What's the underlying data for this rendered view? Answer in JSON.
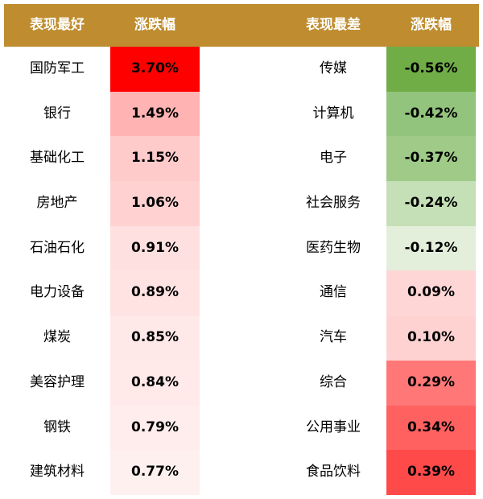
{
  "chart_data": {
    "type": "table",
    "headers": {
      "best_name": "表现最好",
      "best_change": "涨跌幅",
      "worst_name": "表现最差",
      "worst_change": "涨跌幅"
    },
    "best": [
      {
        "name": "国防军工",
        "change": "3.70%",
        "value": 3.7,
        "color": "#ff0000"
      },
      {
        "name": "银行",
        "change": "1.49%",
        "value": 1.49,
        "color": "#ffb3b3"
      },
      {
        "name": "基础化工",
        "change": "1.15%",
        "value": 1.15,
        "color": "#ffcaca"
      },
      {
        "name": "房地产",
        "change": "1.06%",
        "value": 1.06,
        "color": "#ffd1d1"
      },
      {
        "name": "石油石化",
        "change": "0.91%",
        "value": 0.91,
        "color": "#ffe0e0"
      },
      {
        "name": "电力设备",
        "change": "0.89%",
        "value": 0.89,
        "color": "#ffe3e3"
      },
      {
        "name": "煤炭",
        "change": "0.85%",
        "value": 0.85,
        "color": "#ffe8e8"
      },
      {
        "name": "美容护理",
        "change": "0.84%",
        "value": 0.84,
        "color": "#ffe9e9"
      },
      {
        "name": "钢铁",
        "change": "0.79%",
        "value": 0.79,
        "color": "#ffeded"
      },
      {
        "name": "建筑材料",
        "change": "0.77%",
        "value": 0.77,
        "color": "#fff0f0"
      }
    ],
    "worst": [
      {
        "name": "传媒",
        "change": "-0.56%",
        "value": -0.56,
        "color": "#70ad47"
      },
      {
        "name": "计算机",
        "change": "-0.42%",
        "value": -0.42,
        "color": "#93c47d"
      },
      {
        "name": "电子",
        "change": "-0.37%",
        "value": -0.37,
        "color": "#9fca87"
      },
      {
        "name": "社会服务",
        "change": "-0.24%",
        "value": -0.24,
        "color": "#c5dfb6"
      },
      {
        "name": "医药生物",
        "change": "-0.12%",
        "value": -0.12,
        "color": "#e3efdb"
      },
      {
        "name": "通信",
        "change": "0.09%",
        "value": 0.09,
        "color": "#ffd6d6"
      },
      {
        "name": "汽车",
        "change": "0.10%",
        "value": 0.1,
        "color": "#ffd2d2"
      },
      {
        "name": "综合",
        "change": "0.29%",
        "value": 0.29,
        "color": "#ff7777"
      },
      {
        "name": "公用事业",
        "change": "0.34%",
        "value": 0.34,
        "color": "#ff6161"
      },
      {
        "name": "食品饮料",
        "change": "0.39%",
        "value": 0.39,
        "color": "#ff4a4a"
      }
    ]
  }
}
